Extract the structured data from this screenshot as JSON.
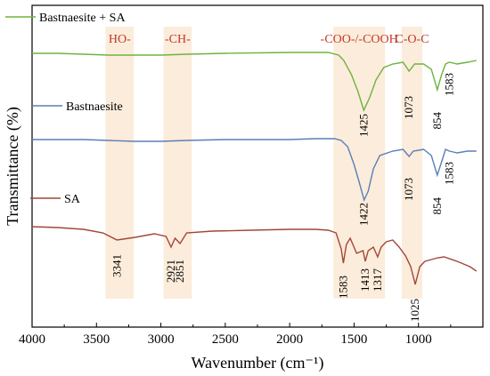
{
  "chart_data": {
    "type": "line",
    "xlabel": "Wavenumber (cm⁻¹)",
    "ylabel": "Transmittance (%)",
    "xlim": [
      4000,
      500
    ],
    "x_ticks": [
      4000,
      3500,
      3000,
      2500,
      2000,
      1500,
      1000
    ],
    "y_ticks": [],
    "grid": false,
    "legend_position": "inline",
    "bands": [
      {
        "label": "HO-",
        "range": [
          3430,
          3210
        ]
      },
      {
        "label": "-CH-",
        "range": [
          2980,
          2760
        ]
      },
      {
        "label": "-COO-/-COOH",
        "range": [
          1660,
          1260
        ]
      },
      {
        "label": "C-O-C",
        "range": [
          1130,
          970
        ]
      }
    ],
    "series": [
      {
        "name": "Bastnaesite + SA",
        "color": "#6db33f",
        "baseline": 60,
        "points": [
          [
            4000,
            60
          ],
          [
            3800,
            60
          ],
          [
            3600,
            61
          ],
          [
            3400,
            62
          ],
          [
            3200,
            62
          ],
          [
            3000,
            62
          ],
          [
            2800,
            61
          ],
          [
            2500,
            60
          ],
          [
            2000,
            59
          ],
          [
            1800,
            59
          ],
          [
            1700,
            59
          ],
          [
            1620,
            62
          ],
          [
            1580,
            68
          ],
          [
            1520,
            84
          ],
          [
            1470,
            103
          ],
          [
            1425,
            124
          ],
          [
            1380,
            110
          ],
          [
            1330,
            90
          ],
          [
            1270,
            76
          ],
          [
            1200,
            72
          ],
          [
            1120,
            70
          ],
          [
            1073,
            80
          ],
          [
            1030,
            72
          ],
          [
            960,
            72
          ],
          [
            900,
            78
          ],
          [
            854,
            101
          ],
          [
            820,
            84
          ],
          [
            790,
            72
          ],
          [
            760,
            70
          ],
          [
            700,
            72
          ],
          [
            620,
            70
          ],
          [
            550,
            68
          ]
        ],
        "peaks": [
          1425,
          1073,
          854,
          1583
        ]
      },
      {
        "name": "Bastnaesite",
        "color": "#5a7fb8",
        "baseline": 157,
        "points": [
          [
            4000,
            157
          ],
          [
            3800,
            157
          ],
          [
            3600,
            157
          ],
          [
            3400,
            158
          ],
          [
            3200,
            159
          ],
          [
            3000,
            159
          ],
          [
            2800,
            158
          ],
          [
            2500,
            157
          ],
          [
            2000,
            157
          ],
          [
            1800,
            156
          ],
          [
            1650,
            156
          ],
          [
            1600,
            158
          ],
          [
            1550,
            165
          ],
          [
            1500,
            185
          ],
          [
            1460,
            205
          ],
          [
            1422,
            225
          ],
          [
            1390,
            215
          ],
          [
            1350,
            190
          ],
          [
            1300,
            175
          ],
          [
            1200,
            170
          ],
          [
            1120,
            168
          ],
          [
            1073,
            176
          ],
          [
            1040,
            170
          ],
          [
            960,
            168
          ],
          [
            900,
            175
          ],
          [
            854,
            197
          ],
          [
            820,
            182
          ],
          [
            790,
            168
          ],
          [
            760,
            170
          ],
          [
            700,
            172
          ],
          [
            620,
            170
          ],
          [
            550,
            170
          ]
        ],
        "peaks": [
          1422,
          1073,
          854,
          1583
        ]
      },
      {
        "name": "SA",
        "color": "#a0473a",
        "baseline": 255,
        "points": [
          [
            4000,
            255
          ],
          [
            3800,
            256
          ],
          [
            3600,
            258
          ],
          [
            3450,
            262
          ],
          [
            3341,
            270
          ],
          [
            3200,
            267
          ],
          [
            3050,
            263
          ],
          [
            2960,
            266
          ],
          [
            2921,
            278
          ],
          [
            2890,
            268
          ],
          [
            2851,
            274
          ],
          [
            2800,
            262
          ],
          [
            2600,
            260
          ],
          [
            2300,
            259
          ],
          [
            2000,
            258
          ],
          [
            1800,
            258
          ],
          [
            1700,
            259
          ],
          [
            1640,
            262
          ],
          [
            1600,
            280
          ],
          [
            1583,
            296
          ],
          [
            1560,
            275
          ],
          [
            1530,
            268
          ],
          [
            1480,
            285
          ],
          [
            1430,
            282
          ],
          [
            1413,
            294
          ],
          [
            1390,
            282
          ],
          [
            1350,
            278
          ],
          [
            1317,
            289
          ],
          [
            1290,
            278
          ],
          [
            1250,
            272
          ],
          [
            1200,
            270
          ],
          [
            1150,
            278
          ],
          [
            1100,
            288
          ],
          [
            1060,
            300
          ],
          [
            1025,
            320
          ],
          [
            990,
            300
          ],
          [
            950,
            294
          ],
          [
            900,
            292
          ],
          [
            850,
            290
          ],
          [
            800,
            289
          ],
          [
            700,
            294
          ],
          [
            600,
            300
          ],
          [
            550,
            305
          ]
        ],
        "peaks": [
          3341,
          2921,
          2851,
          1583,
          1413,
          1317,
          1025
        ]
      }
    ],
    "peak_labels": [
      {
        "series": 0,
        "text": "1425",
        "x": 1425
      },
      {
        "series": 0,
        "text": "1073",
        "x": 1073
      },
      {
        "series": 0,
        "text": "854",
        "x": 854
      },
      {
        "series": 0,
        "text": "1583",
        "x": 760
      },
      {
        "series": 1,
        "text": "1422",
        "x": 1422
      },
      {
        "series": 1,
        "text": "1073",
        "x": 1073
      },
      {
        "series": 1,
        "text": "854",
        "x": 854
      },
      {
        "series": 1,
        "text": "1583",
        "x": 760
      },
      {
        "series": 2,
        "text": "3341",
        "x": 3341
      },
      {
        "series": 2,
        "text": "2921",
        "x": 2921
      },
      {
        "series": 2,
        "text": "2851",
        "x": 2851
      },
      {
        "series": 2,
        "text": "1583",
        "x": 1583
      },
      {
        "series": 2,
        "text": "1413",
        "x": 1413
      },
      {
        "series": 2,
        "text": "1317",
        "x": 1317
      },
      {
        "series": 2,
        "text": "1025",
        "x": 1025
      }
    ],
    "series_labels": [
      {
        "series": 0,
        "text": "Bastnaesite + SA"
      },
      {
        "series": 1,
        "text": "Bastnaesite"
      },
      {
        "series": 2,
        "text": "SA"
      }
    ]
  }
}
